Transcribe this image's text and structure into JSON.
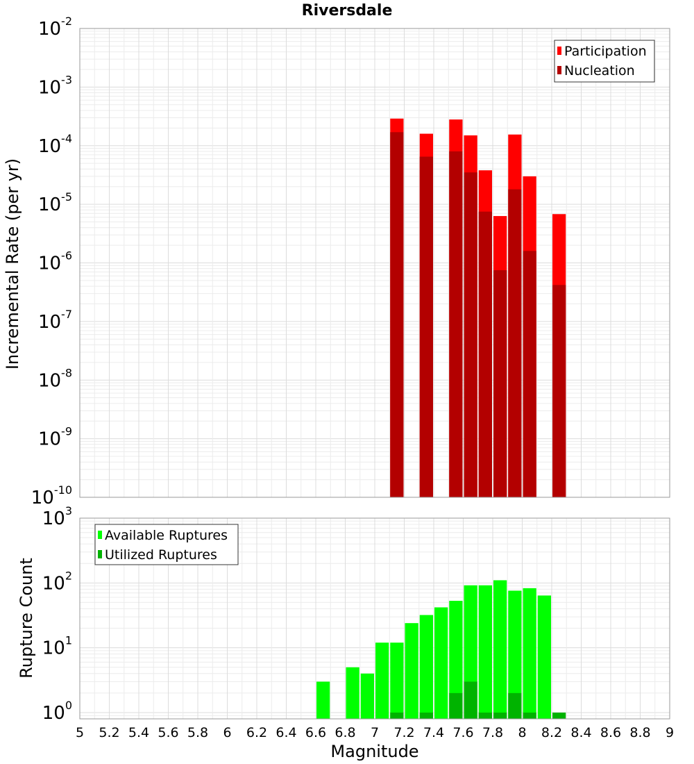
{
  "chart_data": [
    {
      "type": "bar",
      "title": "Riversdale",
      "xlabel": "",
      "ylabel": "Incremental Rate (per yr)",
      "y_scale": "log",
      "ylim": [
        1e-10,
        0.01
      ],
      "y_ticks": [
        {
          "base": "10",
          "exp": "-2"
        },
        {
          "base": "10",
          "exp": "-3"
        },
        {
          "base": "10",
          "exp": "-4"
        },
        {
          "base": "10",
          "exp": "-5"
        },
        {
          "base": "10",
          "exp": "-6"
        },
        {
          "base": "10",
          "exp": "-7"
        },
        {
          "base": "10",
          "exp": "-8"
        },
        {
          "base": "10",
          "exp": "-9"
        },
        {
          "base": "10",
          "exp": "-10"
        }
      ],
      "xlim": [
        5,
        9
      ],
      "bar_width": 0.1,
      "grid": true,
      "legend_position": "top-right",
      "series": [
        {
          "name": "Participation",
          "color": "#ff0000",
          "x": [
            7.15,
            7.35,
            7.55,
            7.65,
            7.75,
            7.85,
            7.95,
            8.05,
            8.25
          ],
          "values": [
            0.00029,
            0.00016,
            0.00028,
            0.00015,
            3.8e-05,
            6.3e-06,
            0.000155,
            3e-05,
            6.8e-06
          ]
        },
        {
          "name": "Nucleation",
          "color": "#b30000",
          "x": [
            7.15,
            7.35,
            7.55,
            7.65,
            7.75,
            7.85,
            7.95,
            8.05,
            8.25
          ],
          "values": [
            0.00017,
            6.5e-05,
            8e-05,
            3.5e-05,
            7.5e-06,
            7.5e-07,
            1.8e-05,
            1.6e-06,
            4.2e-07
          ]
        }
      ]
    },
    {
      "type": "bar",
      "title": "",
      "xlabel": "Magnitude",
      "ylabel": "Rupture Count",
      "y_scale": "log",
      "ylim": [
        0.8,
        1000
      ],
      "y_ticks": [
        {
          "base": "10",
          "exp": "3"
        },
        {
          "base": "10",
          "exp": "2"
        },
        {
          "base": "10",
          "exp": "1"
        },
        {
          "base": "10",
          "exp": "0"
        }
      ],
      "xlim": [
        5,
        9
      ],
      "x_ticks": [
        "5",
        "5.2",
        "5.4",
        "5.6",
        "5.8",
        "6",
        "6.2",
        "6.4",
        "6.6",
        "6.8",
        "7",
        "7.2",
        "7.4",
        "7.6",
        "7.8",
        "8",
        "8.2",
        "8.4",
        "8.6",
        "8.8",
        "9"
      ],
      "bar_width": 0.1,
      "grid": true,
      "legend_position": "top-left",
      "series": [
        {
          "name": "Available Ruptures",
          "color": "#00ff00",
          "x": [
            6.65,
            6.85,
            6.95,
            7.05,
            7.15,
            7.25,
            7.35,
            7.45,
            7.55,
            7.65,
            7.75,
            7.85,
            7.95,
            8.05,
            8.15
          ],
          "values": [
            3,
            5,
            4,
            12,
            12,
            24,
            32,
            42,
            53,
            92,
            92,
            110,
            76,
            83,
            64
          ]
        },
        {
          "name": "Utilized Ruptures",
          "color": "#00b300",
          "x": [
            7.15,
            7.35,
            7.55,
            7.65,
            7.75,
            7.85,
            7.95,
            8.05,
            8.25
          ],
          "values": [
            1,
            1,
            2,
            3,
            1,
            1,
            2,
            1,
            1
          ]
        }
      ]
    }
  ]
}
